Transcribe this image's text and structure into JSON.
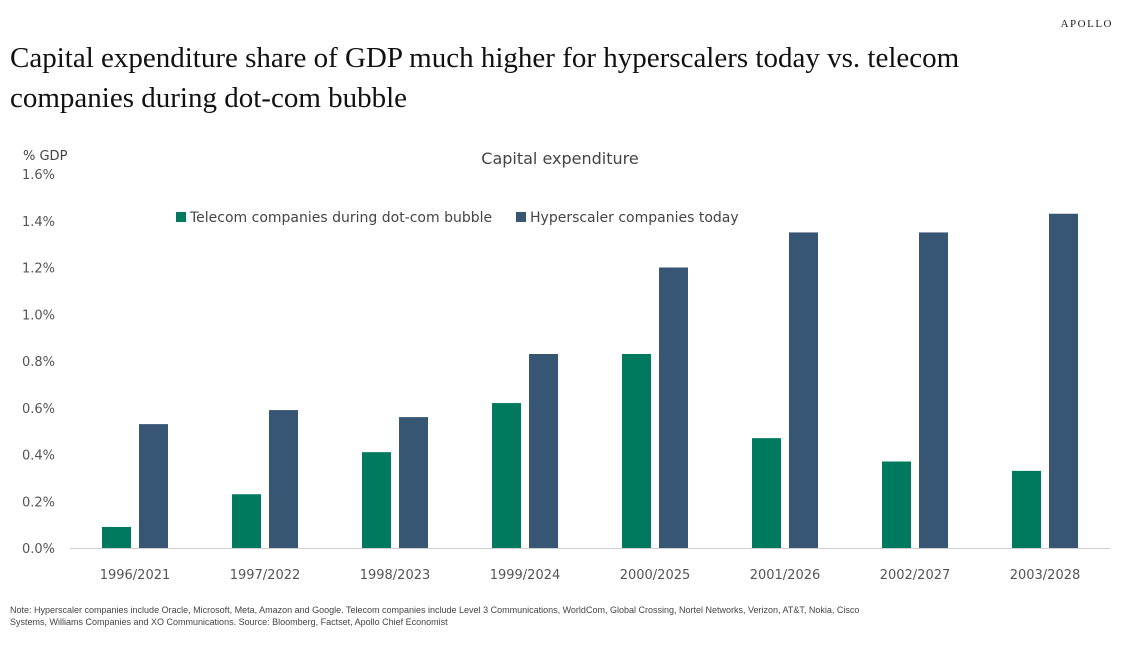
{
  "logo": "APOLLO",
  "title": "Capital expenditure share of GDP much higher for hyperscalers today vs. telecom companies during dot-com bubble",
  "note": "Note: Hyperscaler companies include Oracle, Microsoft, Meta, Amazon and Google. Telecom companies include  Level 3 Communications, WorldCom, Global Crossing, Nortel Networks, Verizon, AT&T, Nokia, Cisco Systems, Williams Companies and XO Communications. Source: Bloomberg, Factset, Apollo Chief Economist",
  "chart_data": {
    "type": "bar",
    "title": "Capital expenditure",
    "ylabel": "% GDP",
    "ylim": [
      0,
      1.6
    ],
    "yticks": [
      "0.0%",
      "0.2%",
      "0.4%",
      "0.6%",
      "0.8%",
      "1.0%",
      "1.2%",
      "1.4%",
      "1.6%"
    ],
    "grid": false,
    "legend_position": "top-left",
    "categories": [
      "1996/2021",
      "1997/2022",
      "1998/2023",
      "1999/2024",
      "2000/2025",
      "2001/2026",
      "2002/2027",
      "2003/2028"
    ],
    "series": [
      {
        "name": "Telecom companies during dot-com bubble",
        "color": "#007a5e",
        "values": [
          0.09,
          0.23,
          0.41,
          0.62,
          0.83,
          0.47,
          0.37,
          0.33
        ]
      },
      {
        "name": "Hyperscaler companies today",
        "color": "#375674",
        "values": [
          0.53,
          0.59,
          0.56,
          0.83,
          1.2,
          1.35,
          1.35,
          1.43
        ]
      }
    ]
  }
}
